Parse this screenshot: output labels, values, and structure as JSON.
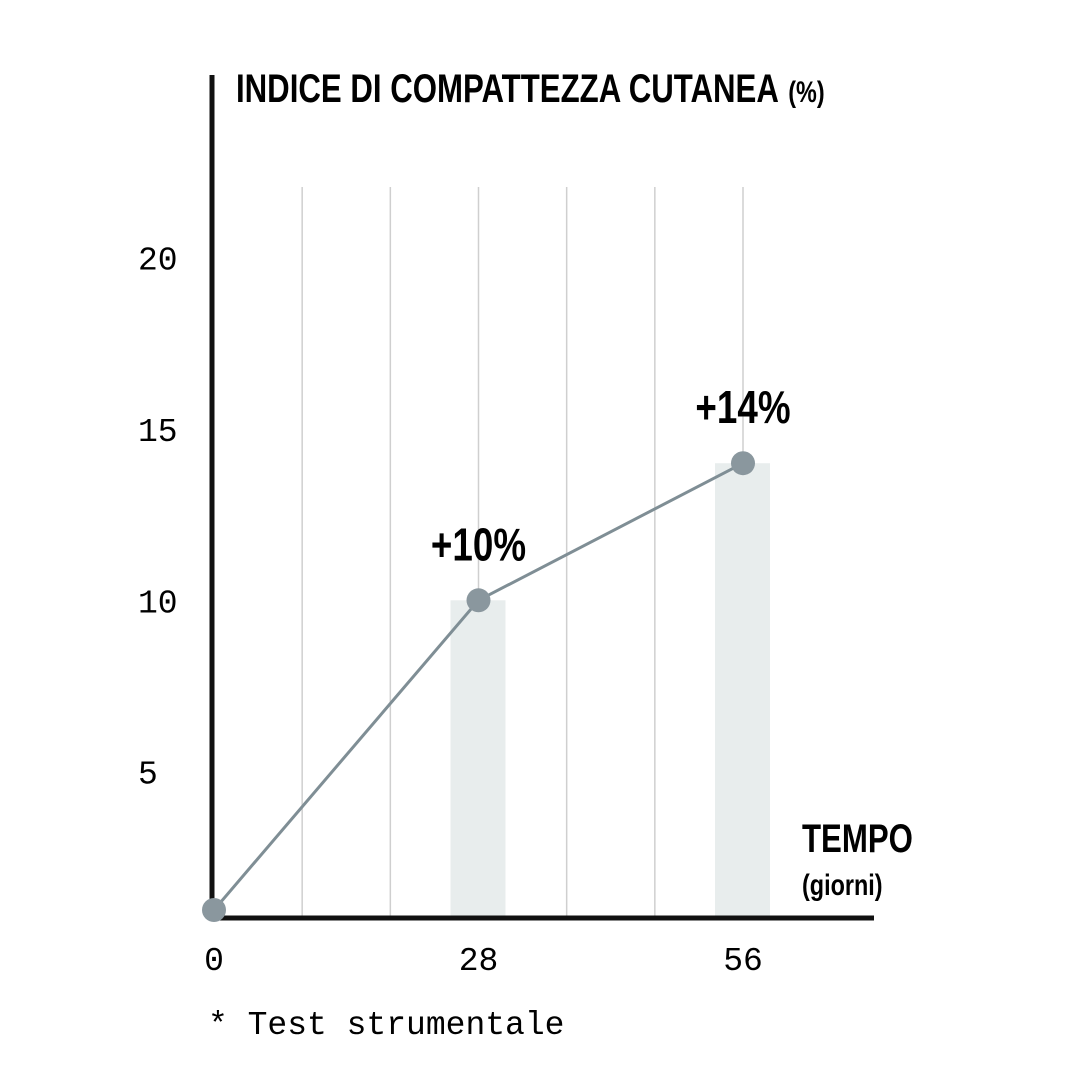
{
  "chart_data": {
    "type": "line",
    "title": "INDICE DI COMPATTEZZA CUTANEA",
    "title_unit": "(%)",
    "xlabel": "TEMPO",
    "xlabel_unit": "(giorni)",
    "ylabel": "",
    "x": [
      0,
      28,
      56
    ],
    "values": [
      0,
      10,
      14
    ],
    "data_labels": [
      "",
      "+10%",
      "+14%"
    ],
    "x_ticks": [
      "0",
      "28",
      "56"
    ],
    "y_ticks": [
      "5",
      "10",
      "15",
      "20"
    ],
    "ylim": [
      0,
      20
    ],
    "xlim": [
      0,
      66
    ],
    "grid": "vertical",
    "highlight_bars": [
      28,
      56
    ],
    "footnote": "* Test strumentale",
    "colors": {
      "line": "#7f8e95",
      "point": "#8a979e",
      "bar": "#e8eded",
      "grid": "#cfcfcf",
      "axis": "#111111"
    }
  }
}
